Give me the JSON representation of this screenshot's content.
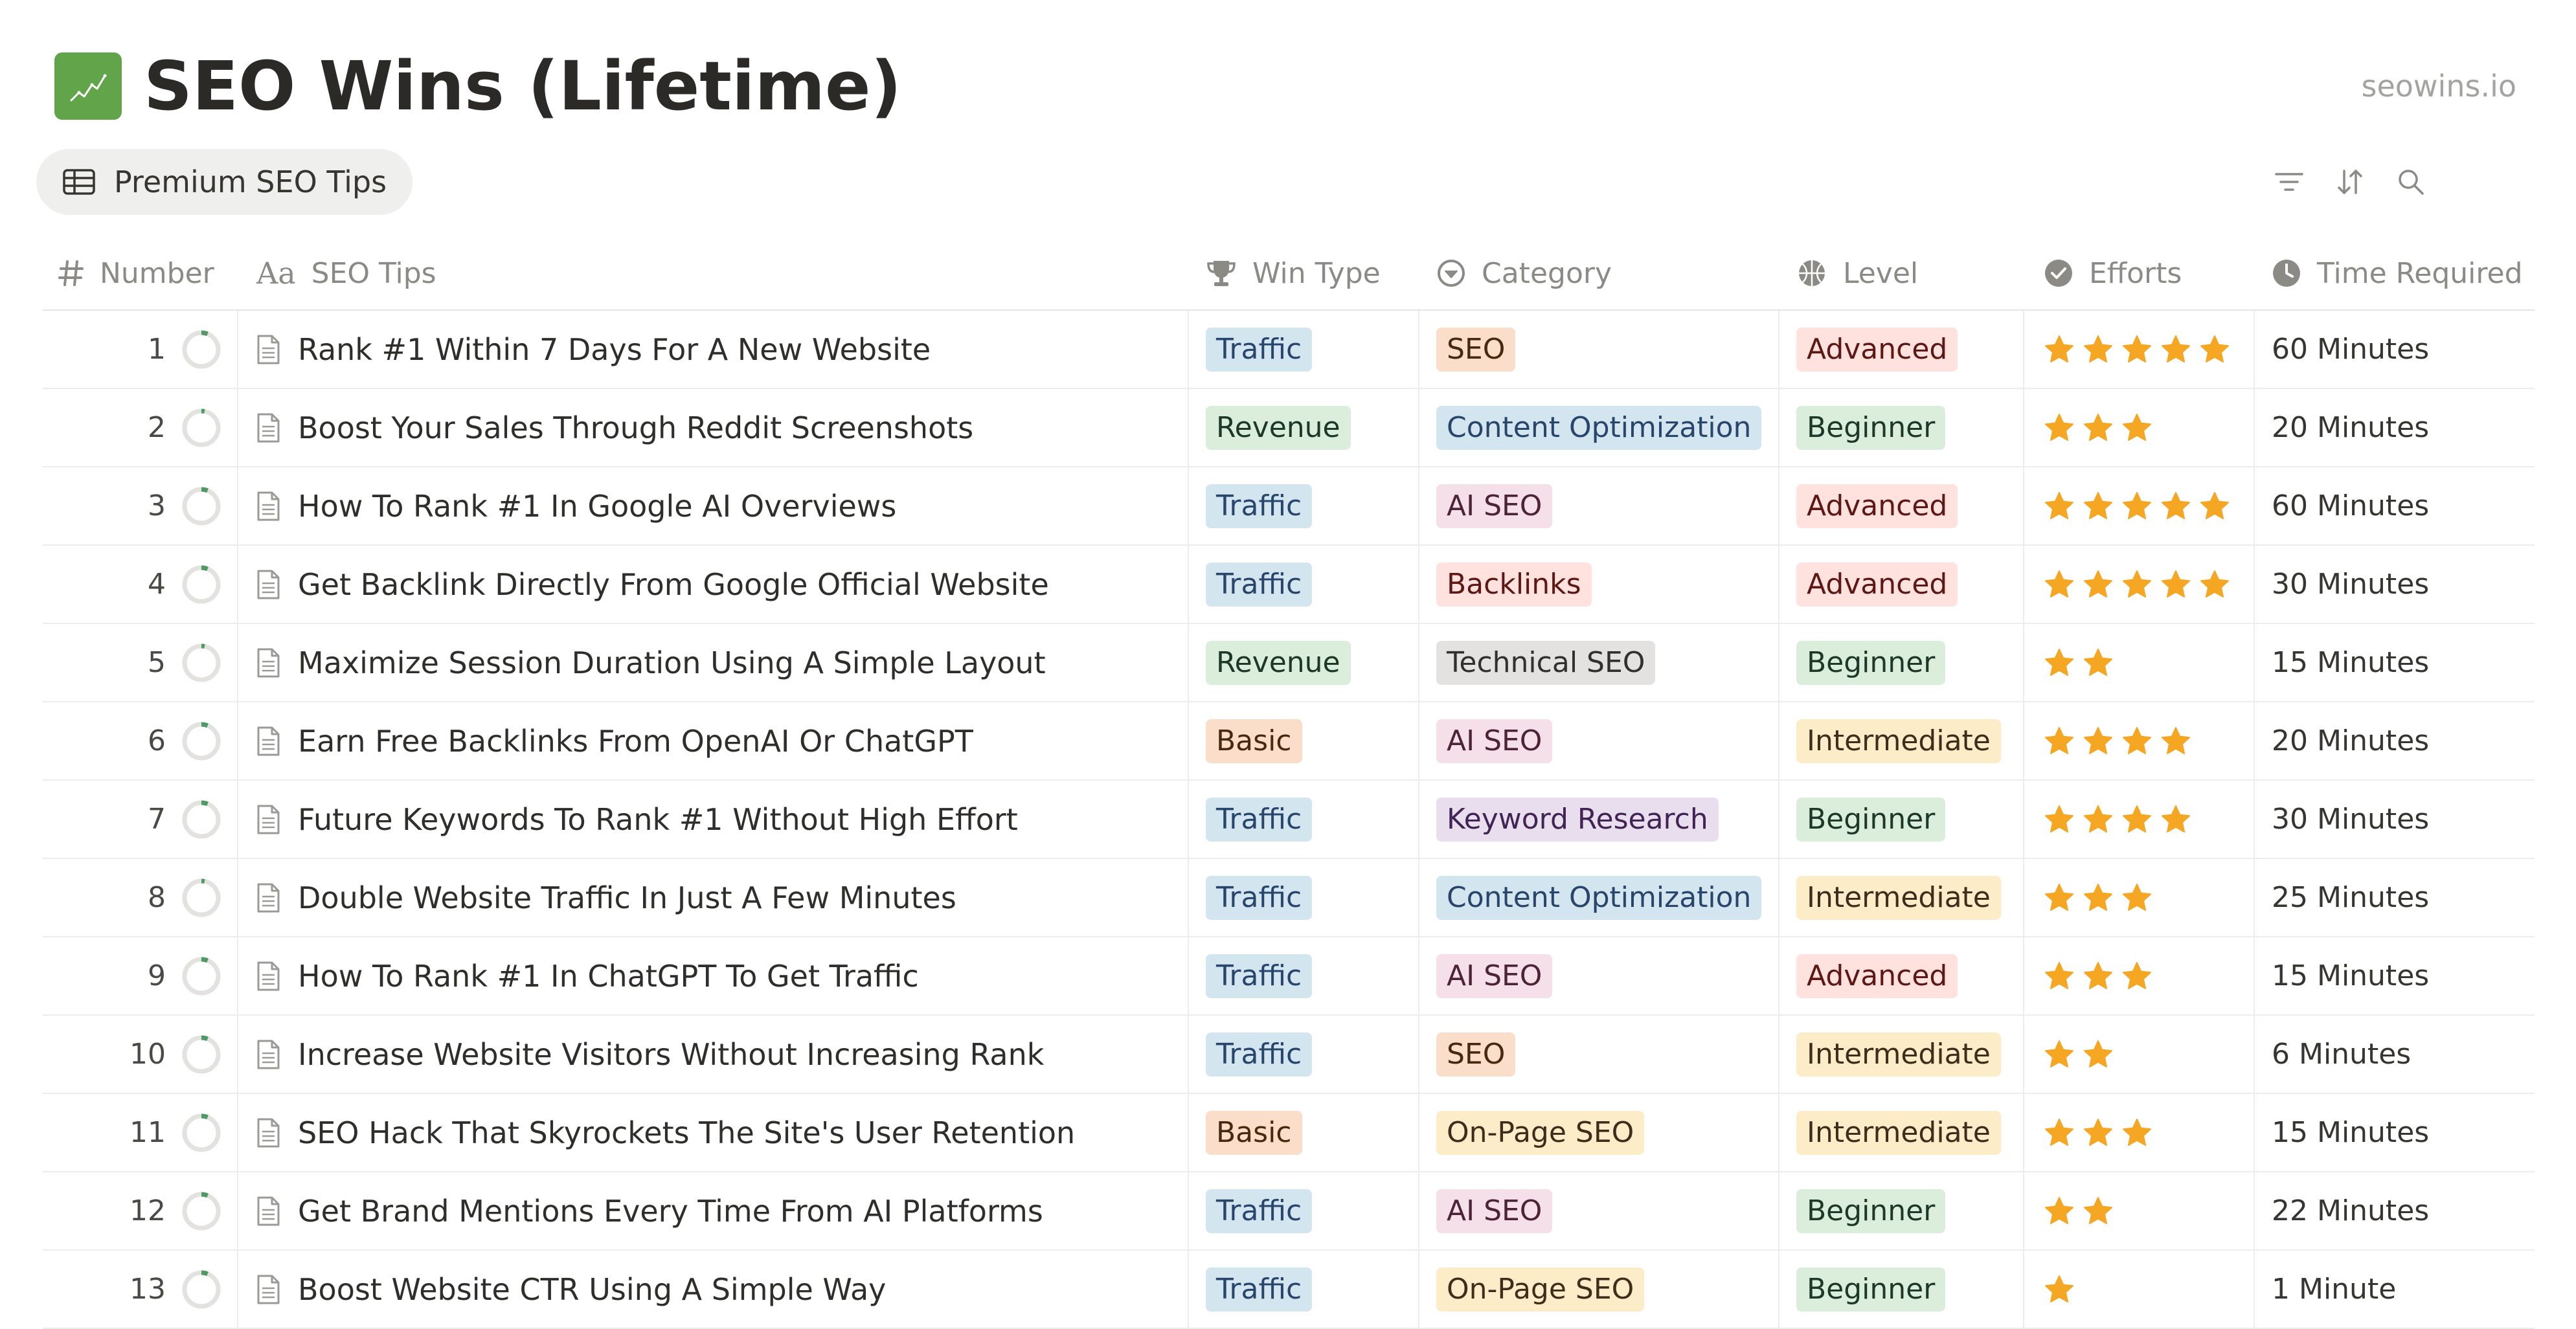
{
  "page": {
    "title": "SEO Wins (Lifetime)",
    "site_url": "seowins.io",
    "icon": "chart-line-icon"
  },
  "view": {
    "tab_label": "Premium SEO Tips",
    "tab_icon": "table-icon"
  },
  "toolbar": {
    "icons": [
      "filter-icon",
      "sort-icon",
      "search-icon"
    ]
  },
  "columns": {
    "number": "Number",
    "tips": "SEO Tips",
    "win_type": "Win Type",
    "category": "Category",
    "level": "Level",
    "efforts": "Efforts",
    "time": "Time Required"
  },
  "tag_colors": {
    "Traffic": {
      "bg": "#d3e5ef",
      "fg": "#28456c"
    },
    "Revenue": {
      "bg": "#dbeddb",
      "fg": "#1c3829"
    },
    "Basic": {
      "bg": "#fadec9",
      "fg": "#49290e"
    },
    "SEO": {
      "bg": "#fadec9",
      "fg": "#49290e"
    },
    "Content Optimization": {
      "bg": "#d3e5ef",
      "fg": "#28456c"
    },
    "AI SEO": {
      "bg": "#f5e0e9",
      "fg": "#4c2337"
    },
    "Backlinks": {
      "bg": "#ffe2dd",
      "fg": "#5d1715"
    },
    "Technical SEO": {
      "bg": "#e3e2e0",
      "fg": "#32302c"
    },
    "Keyword Research": {
      "bg": "#e8deee",
      "fg": "#412454"
    },
    "On-Page SEO": {
      "bg": "#fdecc8",
      "fg": "#402c1b"
    },
    "Advanced": {
      "bg": "#ffe2dd",
      "fg": "#5d1715"
    },
    "Beginner": {
      "bg": "#dbeddb",
      "fg": "#1c3829"
    },
    "Intermediate": {
      "bg": "#fdecc8",
      "fg": "#402c1b"
    }
  },
  "star_color": "#f5a623",
  "rows": [
    {
      "number": "1",
      "progress": 0.06,
      "tip": "Rank #1 Within 7 Days For A New Website",
      "win_type": "Traffic",
      "category": "SEO",
      "level": "Advanced",
      "efforts": 5,
      "time": "60 Minutes"
    },
    {
      "number": "2",
      "progress": 0.03,
      "tip": "Boost Your Sales Through Reddit Screenshots",
      "win_type": "Revenue",
      "category": "Content Optimization",
      "level": "Beginner",
      "efforts": 3,
      "time": "20 Minutes"
    },
    {
      "number": "3",
      "progress": 0.06,
      "tip": "How To Rank #1 In Google AI Overviews",
      "win_type": "Traffic",
      "category": "AI SEO",
      "level": "Advanced",
      "efforts": 5,
      "time": "60 Minutes"
    },
    {
      "number": "4",
      "progress": 0.06,
      "tip": "Get Backlink Directly From Google Official Website",
      "win_type": "Traffic",
      "category": "Backlinks",
      "level": "Advanced",
      "efforts": 5,
      "time": "30 Minutes"
    },
    {
      "number": "5",
      "progress": 0.03,
      "tip": "Maximize Session Duration Using A Simple Layout",
      "win_type": "Revenue",
      "category": "Technical SEO",
      "level": "Beginner",
      "efforts": 2,
      "time": "15 Minutes"
    },
    {
      "number": "6",
      "progress": 0.06,
      "tip": "Earn Free Backlinks From OpenAI Or ChatGPT",
      "win_type": "Basic",
      "category": "AI SEO",
      "level": "Intermediate",
      "efforts": 4,
      "time": "20 Minutes"
    },
    {
      "number": "7",
      "progress": 0.06,
      "tip": "Future Keywords To Rank #1 Without High Effort",
      "win_type": "Traffic",
      "category": "Keyword Research",
      "level": "Beginner",
      "efforts": 4,
      "time": "30 Minutes"
    },
    {
      "number": "8",
      "progress": 0.03,
      "tip": "Double Website Traffic In Just A Few Minutes",
      "win_type": "Traffic",
      "category": "Content Optimization",
      "level": "Intermediate",
      "efforts": 3,
      "time": "25 Minutes"
    },
    {
      "number": "9",
      "progress": 0.06,
      "tip": "How To Rank #1 In ChatGPT To Get Traffic",
      "win_type": "Traffic",
      "category": "AI SEO",
      "level": "Advanced",
      "efforts": 3,
      "time": "15 Minutes"
    },
    {
      "number": "10",
      "progress": 0.06,
      "tip": "Increase Website Visitors Without Increasing Rank",
      "win_type": "Traffic",
      "category": "SEO",
      "level": "Intermediate",
      "efforts": 2,
      "time": "6 Minutes"
    },
    {
      "number": "11",
      "progress": 0.06,
      "tip": "SEO Hack That Skyrockets The Site's User Retention",
      "win_type": "Basic",
      "category": "On-Page SEO",
      "level": "Intermediate",
      "efforts": 3,
      "time": "15 Minutes"
    },
    {
      "number": "12",
      "progress": 0.06,
      "tip": "Get Brand Mentions Every Time From AI Platforms",
      "win_type": "Traffic",
      "category": "AI SEO",
      "level": "Beginner",
      "efforts": 2,
      "time": "22 Minutes"
    },
    {
      "number": "13",
      "progress": 0.06,
      "tip": "Boost Website CTR Using A Simple Way",
      "win_type": "Traffic",
      "category": "On-Page SEO",
      "level": "Beginner",
      "efforts": 1,
      "time": "1 Minute"
    }
  ]
}
